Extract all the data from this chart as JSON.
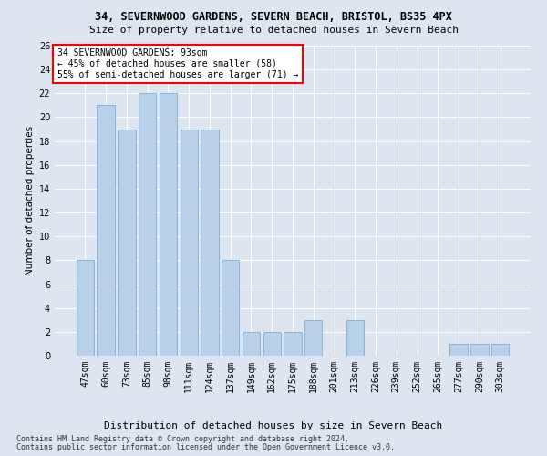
{
  "title": "34, SEVERNWOOD GARDENS, SEVERN BEACH, BRISTOL, BS35 4PX",
  "subtitle": "Size of property relative to detached houses in Severn Beach",
  "xlabel": "Distribution of detached houses by size in Severn Beach",
  "ylabel": "Number of detached properties",
  "categories": [
    "47sqm",
    "60sqm",
    "73sqm",
    "85sqm",
    "98sqm",
    "111sqm",
    "124sqm",
    "137sqm",
    "149sqm",
    "162sqm",
    "175sqm",
    "188sqm",
    "201sqm",
    "213sqm",
    "226sqm",
    "239sqm",
    "252sqm",
    "265sqm",
    "277sqm",
    "290sqm",
    "303sqm"
  ],
  "values": [
    8,
    21,
    19,
    22,
    22,
    19,
    19,
    8,
    2,
    2,
    2,
    3,
    0,
    3,
    0,
    0,
    0,
    0,
    1,
    1,
    1
  ],
  "bar_color": "#b8d0e8",
  "bar_edge_color": "#7aadd4",
  "annotation_text": "34 SEVERNWOOD GARDENS: 93sqm\n← 45% of detached houses are smaller (58)\n55% of semi-detached houses are larger (71) →",
  "ylim": [
    0,
    26
  ],
  "yticks": [
    0,
    2,
    4,
    6,
    8,
    10,
    12,
    14,
    16,
    18,
    20,
    22,
    24,
    26
  ],
  "footer1": "Contains HM Land Registry data © Crown copyright and database right 2024.",
  "footer2": "Contains public sector information licensed under the Open Government Licence v3.0.",
  "background_color": "#dde5f0",
  "plot_bg_color": "#dde5f0",
  "title_fontsize": 8.5,
  "subtitle_fontsize": 8,
  "ylabel_fontsize": 7.5,
  "xlabel_fontsize": 8,
  "tick_fontsize": 7,
  "annot_fontsize": 7,
  "footer_fontsize": 6
}
